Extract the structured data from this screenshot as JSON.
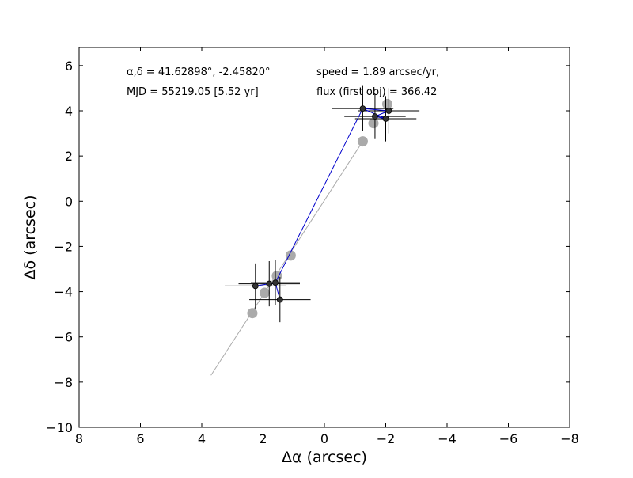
{
  "chart_data": {
    "type": "scatter",
    "xlabel": "Δα (arcsec)",
    "ylabel": "Δδ (arcsec)",
    "xlim": [
      8,
      -8
    ],
    "ylim": [
      -10,
      6.8
    ],
    "x_ticks": [
      8,
      6,
      4,
      2,
      0,
      -2,
      -4,
      -6,
      -8
    ],
    "x_tick_labels": [
      "8",
      "6",
      "4",
      "2",
      "0",
      "−2",
      "−4",
      "−6",
      "−8"
    ],
    "y_ticks": [
      -10,
      -8,
      -6,
      -4,
      -2,
      0,
      2,
      4,
      6
    ],
    "y_tick_labels": [
      "−10",
      "−8",
      "−6",
      "−4",
      "−2",
      "0",
      "2",
      "4",
      "6"
    ],
    "grid": false,
    "annotations": [
      "α,δ = 41.62898°, -2.45820°",
      "MJD = 55219.05 [5.52 yr]",
      "speed = 1.89 arcsec/yr,",
      "flux (first obj) = 366.42"
    ],
    "colors": {
      "model": "#aaaaaa",
      "observed_line": "#0000cc",
      "observed_points": "#333333",
      "error_bars": "#000000"
    },
    "series": [
      {
        "kind": "model_track",
        "x": [
          3.7,
          -1.25
        ],
        "y": [
          -7.7,
          2.65
        ]
      },
      {
        "kind": "model_points",
        "x": [
          2.35,
          1.95,
          1.55,
          1.1,
          -1.25,
          -1.6,
          -2.05
        ],
        "y": [
          -4.95,
          -4.05,
          -3.3,
          -2.4,
          2.65,
          3.45,
          4.3
        ]
      },
      {
        "kind": "observed",
        "x": [
          2.25,
          1.8,
          1.6,
          1.45,
          -1.25,
          -1.65,
          -2.0,
          -2.1
        ],
        "y": [
          -3.75,
          -3.65,
          -3.6,
          -4.35,
          4.1,
          3.75,
          3.65,
          4.0
        ],
        "x_err": [
          1.0,
          1.0,
          0.8,
          1.0,
          1.0,
          1.0,
          1.0,
          1.0
        ],
        "y_err": [
          1.0,
          1.0,
          1.0,
          1.0,
          1.0,
          1.0,
          1.0,
          1.0
        ]
      }
    ],
    "observed_path_order": [
      0,
      1,
      2,
      3,
      2,
      4,
      6,
      5,
      7,
      4
    ]
  }
}
